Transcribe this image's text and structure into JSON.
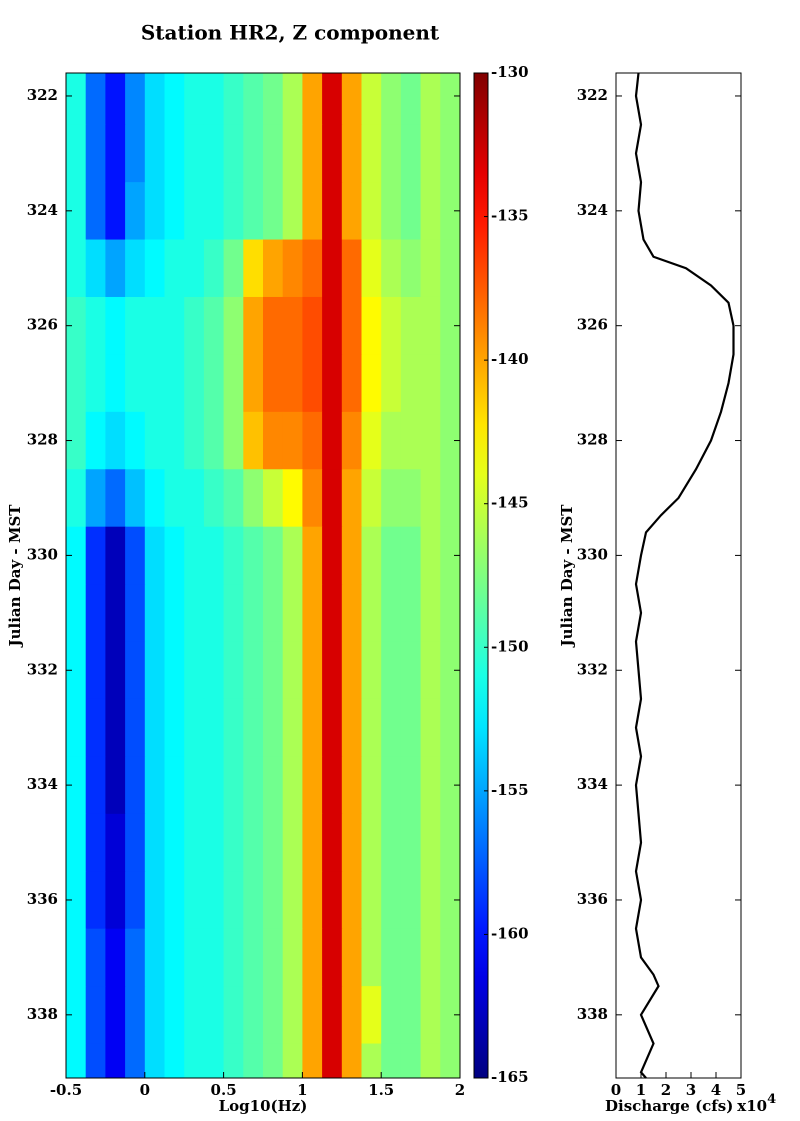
{
  "chart_data": [
    {
      "type": "heatmap",
      "title": "Station HR2,  Z component",
      "xlabel": "Log10(Hz)",
      "ylabel": "Julian Day - MST",
      "xlim": [
        -0.5,
        2
      ],
      "xticks": [
        -0.5,
        0,
        0.5,
        1,
        1.5,
        2
      ],
      "ylim": [
        321.6,
        339.1
      ],
      "y_inverted": true,
      "yticks": [
        322,
        324,
        326,
        328,
        330,
        332,
        334,
        336,
        338
      ],
      "colormap": "jet",
      "zlim": [
        -165,
        -130
      ],
      "zticks": [
        -130,
        -135,
        -140,
        -145,
        -150,
        -155,
        -160,
        -165
      ],
      "x_bins": [
        -0.5,
        -0.375,
        -0.25,
        -0.125,
        0,
        0.125,
        0.25,
        0.375,
        0.5,
        0.625,
        0.75,
        0.875,
        1,
        1.125,
        1.25,
        1.375,
        1.5,
        1.625,
        1.75,
        1.875,
        2
      ],
      "y_bins": [
        321.5,
        322.5,
        323.5,
        324.5,
        325.5,
        326.5,
        327.5,
        328.5,
        329.5,
        330.5,
        331.5,
        332.5,
        333.5,
        334.5,
        335.5,
        336.5,
        337.5,
        338.5,
        339.5
      ],
      "z": [
        [
          -151,
          -157,
          -160,
          -156,
          -153,
          -152,
          -151,
          -151,
          -150,
          -149,
          -148,
          -146,
          -140,
          -133,
          -140,
          -145,
          -147,
          -148,
          -146,
          -147
        ],
        [
          -151,
          -157,
          -160,
          -156,
          -153,
          -152,
          -151,
          -151,
          -150,
          -149,
          -148,
          -146,
          -140,
          -133,
          -140,
          -145,
          -147,
          -148,
          -146,
          -147
        ],
        [
          -151,
          -157,
          -160,
          -155,
          -153,
          -152,
          -151,
          -151,
          -150,
          -149,
          -148,
          -146,
          -140,
          -133,
          -140,
          -145,
          -147,
          -148,
          -146,
          -147
        ],
        [
          -151,
          -153,
          -155,
          -153,
          -152,
          -151,
          -151,
          -150,
          -148,
          -142,
          -140,
          -139,
          -138,
          -133,
          -138,
          -144,
          -146,
          -147,
          -146,
          -147
        ],
        [
          -150,
          -151,
          -152,
          -151,
          -151,
          -151,
          -150,
          -149,
          -147,
          -140,
          -138,
          -138,
          -137,
          -133,
          -138,
          -143,
          -145,
          -146,
          -146,
          -147
        ],
        [
          -150,
          -151,
          -152,
          -151,
          -151,
          -151,
          -150,
          -149,
          -147,
          -140,
          -138,
          -138,
          -137,
          -133,
          -138,
          -143,
          -145,
          -146,
          -146,
          -147
        ],
        [
          -150,
          -152,
          -153,
          -152,
          -151,
          -151,
          -150,
          -149,
          -147,
          -141,
          -139,
          -139,
          -138,
          -133,
          -139,
          -144,
          -146,
          -146,
          -146,
          -147
        ],
        [
          -151,
          -155,
          -157,
          -154,
          -152,
          -151,
          -151,
          -150,
          -149,
          -147,
          -145,
          -143,
          -139,
          -133,
          -140,
          -145,
          -147,
          -147,
          -146,
          -147
        ],
        [
          -152,
          -159,
          -163,
          -158,
          -153,
          -152,
          -151,
          -151,
          -150,
          -149,
          -148,
          -146,
          -140,
          -133,
          -140,
          -146,
          -148,
          -148,
          -146,
          -147
        ],
        [
          -152,
          -159,
          -163,
          -158,
          -153,
          -152,
          -151,
          -151,
          -150,
          -149,
          -148,
          -146,
          -140,
          -133,
          -140,
          -146,
          -148,
          -148,
          -146,
          -147
        ],
        [
          -152,
          -159,
          -163,
          -158,
          -153,
          -152,
          -151,
          -151,
          -150,
          -149,
          -148,
          -146,
          -140,
          -133,
          -140,
          -146,
          -148,
          -148,
          -146,
          -147
        ],
        [
          -152,
          -159,
          -163,
          -158,
          -153,
          -152,
          -151,
          -151,
          -150,
          -149,
          -148,
          -146,
          -140,
          -133,
          -140,
          -146,
          -148,
          -148,
          -146,
          -147
        ],
        [
          -152,
          -159,
          -163,
          -158,
          -153,
          -152,
          -151,
          -151,
          -150,
          -149,
          -148,
          -146,
          -140,
          -133,
          -140,
          -146,
          -148,
          -148,
          -146,
          -147
        ],
        [
          -152,
          -159,
          -162,
          -158,
          -153,
          -152,
          -151,
          -151,
          -150,
          -149,
          -148,
          -146,
          -140,
          -133,
          -140,
          -146,
          -148,
          -148,
          -146,
          -147
        ],
        [
          -152,
          -159,
          -162,
          -158,
          -153,
          -152,
          -151,
          -151,
          -150,
          -149,
          -148,
          -146,
          -140,
          -133,
          -140,
          -146,
          -148,
          -148,
          -146,
          -147
        ],
        [
          -152,
          -158,
          -161,
          -157,
          -153,
          -152,
          -151,
          -151,
          -150,
          -149,
          -148,
          -146,
          -140,
          -133,
          -140,
          -146,
          -148,
          -148,
          -146,
          -147
        ],
        [
          -152,
          -158,
          -161,
          -157,
          -153,
          -152,
          -151,
          -151,
          -150,
          -149,
          -148,
          -146,
          -140,
          -133,
          -140,
          -144,
          -148,
          -148,
          -146,
          -147
        ],
        [
          -152,
          -158,
          -161,
          -157,
          -153,
          -152,
          -151,
          -151,
          -150,
          -149,
          -148,
          -146,
          -140,
          -133,
          -140,
          -146,
          -148,
          -148,
          -146,
          -147
        ]
      ]
    },
    {
      "type": "line",
      "orientation": "vertical",
      "xlabel": "Discharge (cfs)",
      "xlabel_suffix": "x10",
      "xlabel_exponent": "4",
      "ylabel": "Julian Day - MST",
      "xlim": [
        0,
        5
      ],
      "xticks": [
        0,
        1,
        2,
        3,
        4,
        5
      ],
      "ylim": [
        321.6,
        339.1
      ],
      "y_inverted": true,
      "yticks": [
        322,
        324,
        326,
        328,
        330,
        332,
        334,
        336,
        338
      ],
      "series": [
        {
          "color": "#000000",
          "x": [
            321.6,
            322,
            322.5,
            323,
            323.5,
            324,
            324.5,
            324.8,
            325,
            325.3,
            325.6,
            326,
            326.5,
            327,
            327.5,
            328,
            328.5,
            329,
            329.3,
            329.6,
            330,
            330.5,
            331,
            331.5,
            332,
            332.5,
            333,
            333.5,
            334,
            334.5,
            335,
            335.5,
            336,
            336.5,
            337,
            337.3,
            337.5,
            338,
            338.5,
            339,
            339.1
          ],
          "values": [
            0.9,
            0.8,
            1.0,
            0.8,
            1.0,
            0.9,
            1.1,
            1.5,
            2.8,
            3.8,
            4.5,
            4.7,
            4.7,
            4.5,
            4.2,
            3.8,
            3.2,
            2.5,
            1.8,
            1.2,
            1.0,
            0.8,
            1.0,
            0.8,
            0.9,
            1.0,
            0.8,
            1.0,
            0.8,
            0.9,
            1.0,
            0.8,
            1.0,
            0.8,
            1.0,
            1.5,
            1.7,
            1.0,
            1.5,
            1.0,
            1.2
          ]
        }
      ]
    }
  ]
}
